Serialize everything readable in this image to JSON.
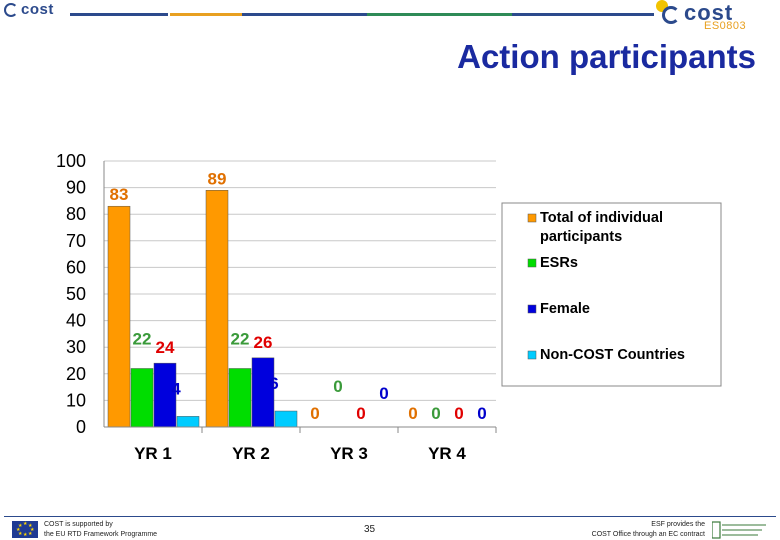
{
  "header": {
    "left_logo_text": "cost",
    "right_logo_text": "cost",
    "action_code": "ES0803",
    "title": "Action participants"
  },
  "footer": {
    "left_line1": "COST is supported by",
    "left_line2": "the EU RTD Framework Programme",
    "page_number": "35",
    "right_line1": "ESF provides the",
    "right_line2": "COST Office through an EC contract"
  },
  "chart_data": {
    "type": "bar",
    "categories": [
      "YR 1",
      "YR 2",
      "YR 3",
      "YR 4"
    ],
    "series": [
      {
        "name": "Total of individual participants",
        "values": [
          83,
          89,
          0,
          0
        ],
        "color": "#ff9900",
        "label_color": "#e07000"
      },
      {
        "name": "ESRs",
        "values": [
          22,
          22,
          0,
          0
        ],
        "color": "#00dd00",
        "label_color": "#3a9a3a"
      },
      {
        "name": "Female",
        "values": [
          24,
          26,
          0,
          0
        ],
        "color": "#0000dd",
        "label_color": "#e00000"
      },
      {
        "name": "Non-COST Countries",
        "values": [
          4,
          6,
          0,
          0
        ],
        "color": "#00ccff",
        "label_color": "#0000cc"
      }
    ],
    "yticks": [
      "0",
      "10",
      "20",
      "30",
      "40",
      "50",
      "60",
      "70",
      "80",
      "90",
      "100"
    ],
    "ylim": [
      0,
      100
    ],
    "grid": true,
    "legend_position": "right"
  }
}
